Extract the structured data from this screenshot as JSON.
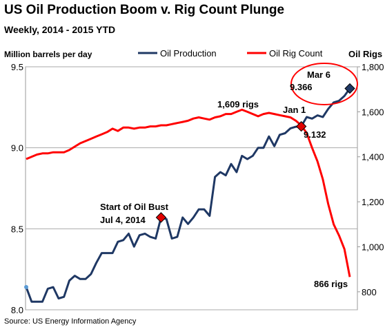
{
  "chart_data": {
    "type": "line",
    "title": "US Oil Production Boom v. Rig Count Plunge",
    "subtitle": "Weekly, 2014 - 2015 YTD",
    "y_label": "Million barrels per day",
    "y2_label": "Oil Rigs",
    "source": "Source: US Energy Information Agency",
    "grid": true,
    "series": [
      {
        "name": "Oil Production",
        "color": "#1f3864",
        "values": [
          8.14,
          8.05,
          8.05,
          8.05,
          8.13,
          8.14,
          8.07,
          8.08,
          8.18,
          8.21,
          8.19,
          8.19,
          8.22,
          8.29,
          8.35,
          8.35,
          8.35,
          8.42,
          8.43,
          8.47,
          8.39,
          8.46,
          8.47,
          8.45,
          8.44,
          8.57,
          8.56,
          8.44,
          8.45,
          8.57,
          8.53,
          8.57,
          8.62,
          8.62,
          8.58,
          8.82,
          8.85,
          8.83,
          8.9,
          8.85,
          8.95,
          8.93,
          8.95,
          9.0,
          9.0,
          9.07,
          9.01,
          9.08,
          9.09,
          9.12,
          9.13,
          9.132,
          9.19,
          9.18,
          9.2,
          9.19,
          9.24,
          9.28,
          9.29,
          9.32,
          9.366
        ]
      },
      {
        "name": "Oil Rig Count",
        "color": "#ff0000",
        "axis": "y2",
        "values": [
          1390,
          1400,
          1410,
          1415,
          1415,
          1420,
          1420,
          1420,
          1430,
          1445,
          1460,
          1470,
          1480,
          1490,
          1500,
          1510,
          1525,
          1515,
          1530,
          1530,
          1525,
          1530,
          1530,
          1535,
          1535,
          1540,
          1540,
          1545,
          1550,
          1555,
          1560,
          1570,
          1575,
          1570,
          1565,
          1575,
          1580,
          1590,
          1590,
          1600,
          1609,
          1600,
          1590,
          1580,
          1590,
          1595,
          1590,
          1585,
          1580,
          1575,
          1560,
          1540,
          1505,
          1440,
          1380,
          1300,
          1190,
          1100,
          1050,
          990,
          866
        ]
      }
    ],
    "ylim": [
      8.0,
      9.5
    ],
    "yticks": [
      {
        "value": 8,
        "label": "8.0"
      },
      8.5,
      {
        "value": 9,
        "label": "9.0"
      },
      9.5
    ],
    "y2lim": [
      720,
      1800
    ],
    "y2ticks": [
      800,
      {
        "value": 1000,
        "label": "1,000"
      },
      {
        "value": 1200,
        "label": "1,200"
      },
      {
        "value": 1400,
        "label": "1,400"
      },
      {
        "value": 1600,
        "label": "1,600"
      },
      {
        "value": 1800,
        "label": "1,800"
      }
    ],
    "annotations": [
      {
        "text": "Start of Oil Bust",
        "text2": "Jul 4, 2014"
      },
      {
        "text": "1,609 rigs"
      },
      {
        "text": "Jan 1",
        "text2": "9.132"
      },
      {
        "text": "Mar 6",
        "text2": "9.366"
      },
      {
        "text": "866 rigs"
      }
    ]
  }
}
